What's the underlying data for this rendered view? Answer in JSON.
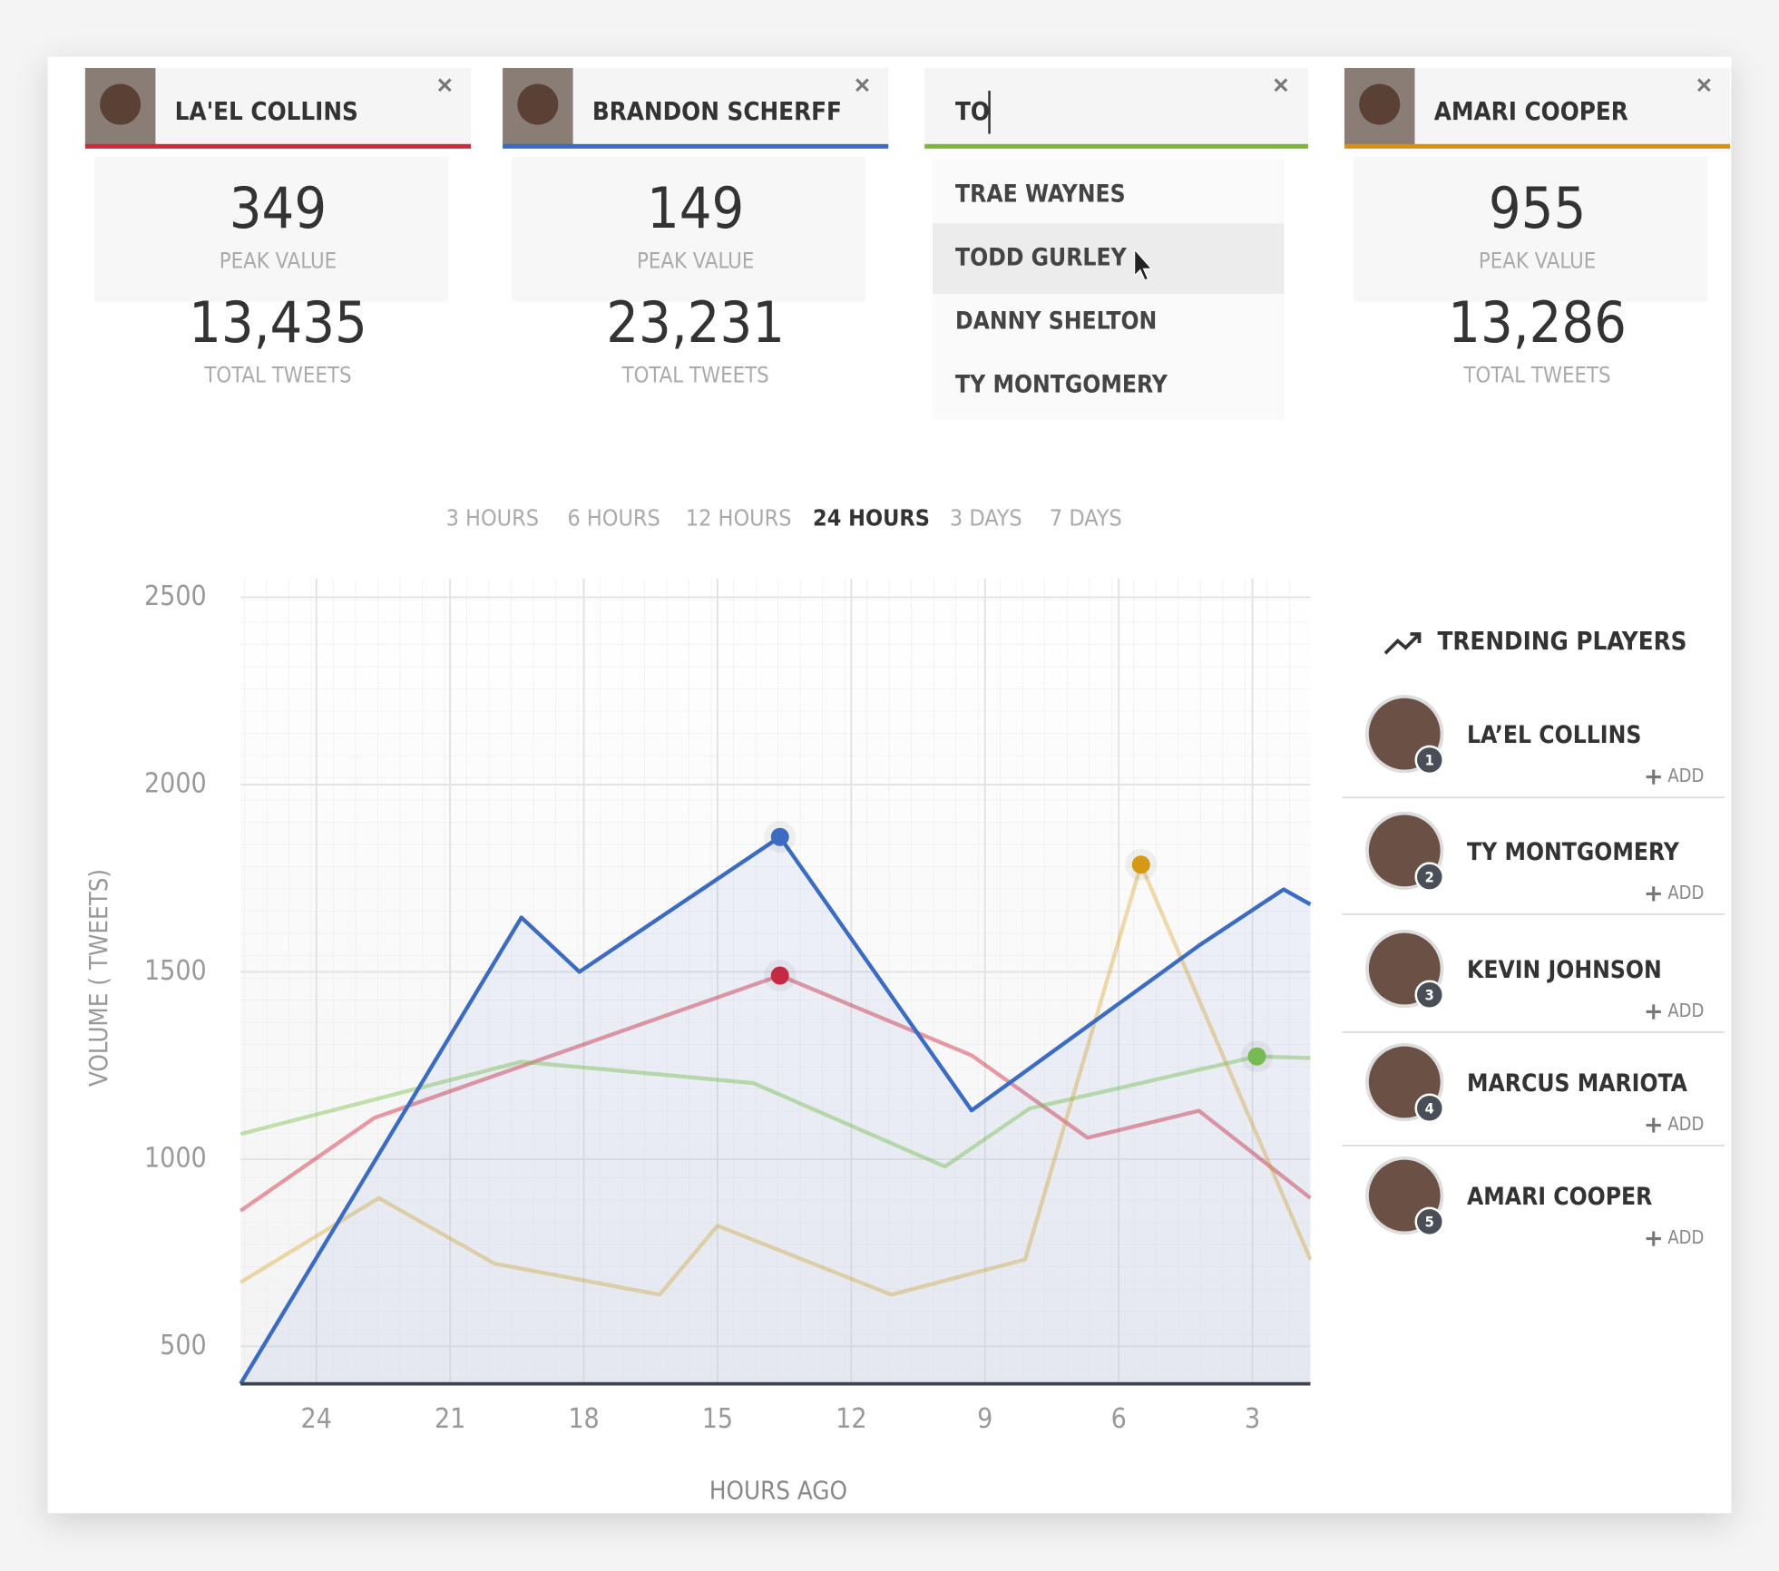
{
  "cards": [
    {
      "name": "LA'EL COLLINS",
      "color": "#d1273a",
      "peak_value": 349,
      "peak_label": "PEAK VALUE",
      "total_tweets": "13,435",
      "total_label": "TOTAL TWEETS"
    },
    {
      "name": "BRANDON SCHERFF",
      "color": "#3b6cc2",
      "peak_value": 149,
      "peak_label": "PEAK VALUE",
      "total_tweets": "23,231",
      "total_label": "TOTAL TWEETS"
    },
    {
      "name": "AMARI COOPER",
      "color": "#d4920f",
      "peak_value": 955,
      "peak_label": "PEAK VALUE",
      "total_tweets": "13,286",
      "total_label": "TOTAL TWEETS"
    }
  ],
  "search": {
    "query": "TO",
    "color": "#7cb342",
    "suggestions": [
      "TRAE WAYNES",
      "TODD GURLEY",
      "DANNY SHELTON",
      "TY MONTGOMERY"
    ],
    "highlighted": 1
  },
  "tabs": {
    "items": [
      "3 HOURS",
      "6 HOURS",
      "12 HOURS",
      "24 HOURS",
      "3 DAYS",
      "7 DAYS"
    ],
    "active": 3
  },
  "trending": {
    "title": "TRENDING PLAYERS",
    "add_label": "ADD",
    "players": [
      {
        "rank": 1,
        "name": "LA’EL COLLINS"
      },
      {
        "rank": 2,
        "name": "TY MONTGOMERY"
      },
      {
        "rank": 3,
        "name": "KEVIN JOHNSON"
      },
      {
        "rank": 4,
        "name": "MARCUS MARIOTA"
      },
      {
        "rank": 5,
        "name": "AMARI COOPER"
      }
    ]
  },
  "chart_data": {
    "type": "line",
    "y_label": "VOLUME ( TWEETS)",
    "x_label": "HOURS AGO",
    "xlim": [
      25.7,
      1.7
    ],
    "xticks": [
      24,
      21,
      18,
      15,
      12,
      9,
      6,
      3
    ],
    "ylim": [
      400,
      2550
    ],
    "yticks": [
      500,
      1000,
      1500,
      2000,
      2500
    ],
    "series": [
      {
        "color": "#d1243b",
        "line_opacity": 0.45,
        "x": [
          25.7,
          22.7,
          13.6,
          9.3,
          6.7,
          4.2,
          1.7
        ],
        "values": [
          862,
          1110,
          1490,
          1277,
          1057,
          1129,
          896
        ]
      },
      {
        "color": "#7cc04b",
        "line_opacity": 0.45,
        "x": [
          25.7,
          19.4,
          14.2,
          9.9,
          8,
          2.9,
          1.7
        ],
        "values": [
          1067,
          1260,
          1203,
          980,
          1135,
          1274,
          1270
        ]
      },
      {
        "color": "#d49a14",
        "line_opacity": 0.35,
        "x": [
          25.7,
          22.6,
          20,
          16.3,
          15,
          11.1,
          8.1,
          5.5,
          1.7
        ],
        "values": [
          671,
          896,
          721,
          638,
          822,
          638,
          732,
          1786,
          732
        ]
      },
      {
        "color": "#3b6cc2",
        "line_opacity": 1,
        "area": true,
        "x": [
          25.7,
          19.4,
          18.1,
          13.6,
          9.3,
          4.2,
          2.3,
          1.7
        ],
        "values": [
          400,
          1645,
          1500,
          1860,
          1130,
          1570,
          1720,
          1680
        ]
      }
    ]
  }
}
